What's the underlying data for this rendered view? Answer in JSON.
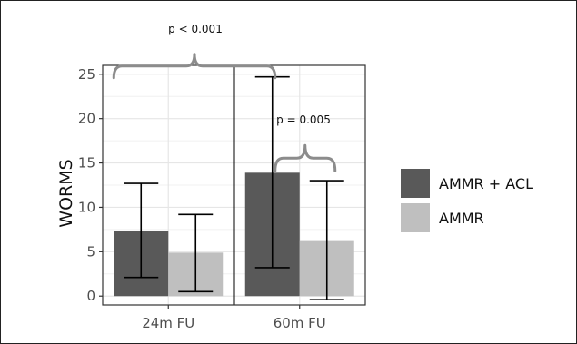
{
  "chart_data": {
    "type": "bar",
    "categories": [
      "24m FU",
      "60m FU"
    ],
    "ylabel": "WORMS",
    "xlabel": "",
    "ylim": [
      -1,
      26
    ],
    "yticks": [
      "0",
      "5",
      "10",
      "15",
      "20",
      "25"
    ],
    "grid": true,
    "legend_position": "right",
    "series": [
      {
        "name": "AMMR + ACL",
        "color": "#595959",
        "values": [
          7.3,
          13.9
        ],
        "error_low": [
          2.1,
          3.2
        ],
        "error_high": [
          12.7,
          24.7
        ]
      },
      {
        "name": "AMMR",
        "color": "#bfbfbf",
        "values": [
          4.9,
          6.3
        ],
        "error_low": [
          0.5,
          -0.4
        ],
        "error_high": [
          9.2,
          13.0
        ]
      }
    ],
    "annotations": [
      {
        "text": "p < 0.001",
        "from": "24m FU / AMMR + ACL",
        "to": "60m FU / AMMR + ACL"
      },
      {
        "text": "p = 0.005",
        "from": "60m FU / AMMR + ACL",
        "to": "60m FU / AMMR"
      }
    ]
  }
}
